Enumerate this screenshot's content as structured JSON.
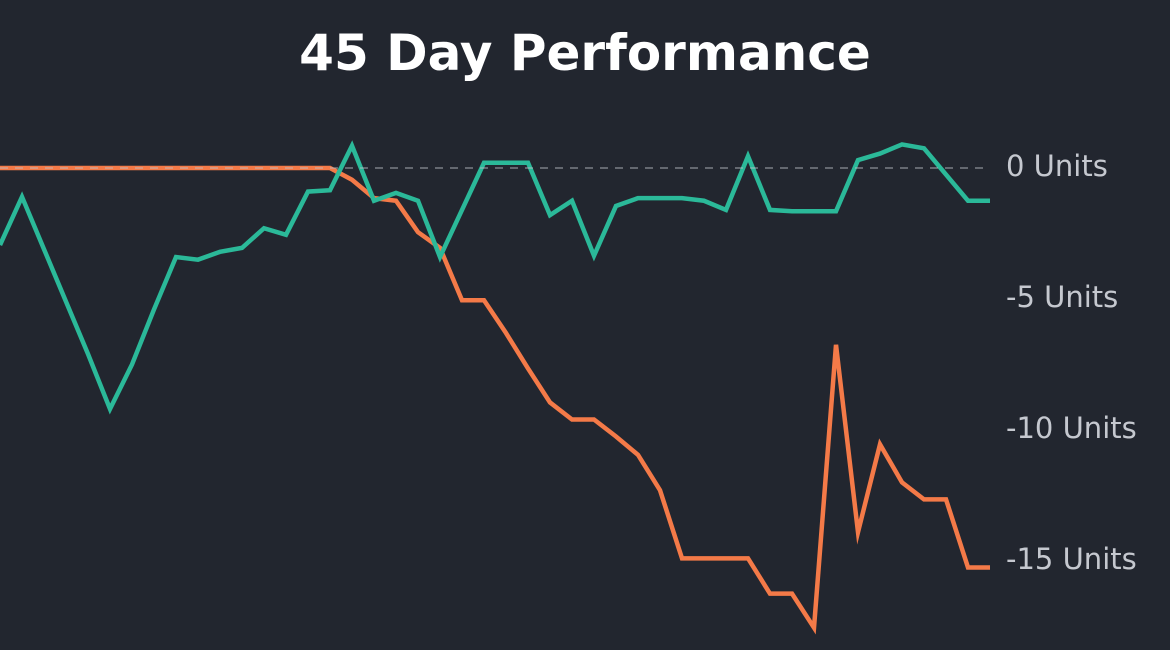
{
  "chart_data": {
    "type": "line",
    "title": "45 Day Performance",
    "x": [
      0,
      1,
      2,
      3,
      4,
      5,
      6,
      7,
      8,
      9,
      10,
      11,
      12,
      13,
      14,
      15,
      16,
      17,
      18,
      19,
      20,
      21,
      22,
      23,
      24,
      25,
      26,
      27,
      28,
      29,
      30,
      31,
      32,
      33,
      34,
      35,
      36,
      37,
      38,
      39,
      40,
      41,
      42,
      43,
      44,
      45
    ],
    "xlim": [
      0,
      45
    ],
    "series": [
      {
        "color": "#f47a48",
        "values": [
          0,
          0,
          0,
          0,
          0,
          0,
          0,
          0,
          0,
          0,
          0,
          0,
          0,
          0,
          0,
          0,
          -0.45,
          -1.15,
          -1.25,
          -2.45,
          -3.05,
          -5.05,
          -5.05,
          -6.3,
          -7.65,
          -8.95,
          -9.6,
          -9.6,
          -10.25,
          -10.95,
          -12.3,
          -14.9,
          -14.9,
          -14.9,
          -14.9,
          -16.25,
          -16.25,
          -17.55,
          -6.75,
          -13.9,
          -10.55,
          -12.0,
          -12.65,
          -12.65,
          -15.25,
          -15.25
        ]
      },
      {
        "color": "#2bb999",
        "values": [
          -2.94,
          -1.1,
          -3.1,
          -5.1,
          -7.1,
          -9.2,
          -7.5,
          -5.4,
          -3.4,
          -3.5,
          -3.2,
          -3.05,
          -2.3,
          -2.55,
          -0.9,
          -0.85,
          0.85,
          -1.25,
          -0.95,
          -1.25,
          -3.4,
          -1.6,
          0.2,
          0.2,
          0.2,
          -1.8,
          -1.25,
          -3.35,
          -1.45,
          -1.15,
          -1.15,
          -1.15,
          -1.25,
          -1.6,
          0.45,
          -1.6,
          -1.65,
          -1.65,
          -1.65,
          0.3,
          0.55,
          0.9,
          0.75,
          -0.25,
          -1.25,
          -1.25
        ]
      }
    ],
    "ylim": [
      -18.4,
      1.5
    ],
    "yticks": [
      {
        "value": 0,
        "label": "0 Units"
      },
      {
        "value": -5,
        "label": "-5 Units"
      },
      {
        "value": -10,
        "label": "-10 Units"
      },
      {
        "value": -15,
        "label": "-15 Units"
      }
    ],
    "hlines": [
      0
    ],
    "grid": false
  }
}
